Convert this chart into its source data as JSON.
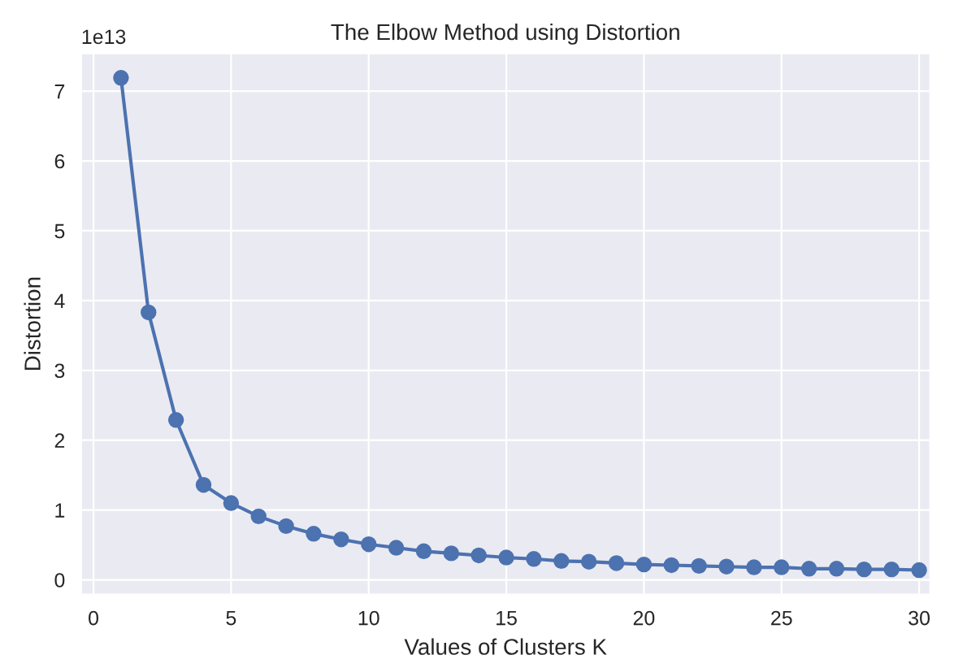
{
  "chart_data": {
    "type": "line",
    "title": "The Elbow Method using Distortion",
    "xlabel": "Values of Clusters K",
    "ylabel": "Distortion",
    "annotations": [
      "1e13"
    ],
    "x": [
      1,
      2,
      3,
      4,
      5,
      6,
      7,
      8,
      9,
      10,
      11,
      12,
      13,
      14,
      15,
      16,
      17,
      18,
      19,
      20,
      21,
      22,
      23,
      24,
      25,
      26,
      27,
      28,
      29,
      30
    ],
    "series": [
      {
        "color": "#4c72b0",
        "values": [
          7.19,
          3.83,
          2.29,
          1.36,
          1.1,
          0.91,
          0.77,
          0.66,
          0.58,
          0.51,
          0.46,
          0.41,
          0.38,
          0.35,
          0.32,
          0.3,
          0.27,
          0.26,
          0.24,
          0.22,
          0.21,
          0.2,
          0.19,
          0.18,
          0.18,
          0.16,
          0.16,
          0.15,
          0.15,
          0.14
        ]
      }
    ],
    "xlim": [
      -0.45,
      30.4
    ],
    "ylim": [
      -0.21,
      7.54
    ],
    "xticks": [
      0,
      5,
      10,
      15,
      20,
      25,
      30
    ],
    "yticks": [
      0,
      1,
      2,
      3,
      4,
      5,
      6,
      7
    ],
    "grid": true,
    "marker": "circle",
    "line_style": "solid",
    "legend": false
  }
}
